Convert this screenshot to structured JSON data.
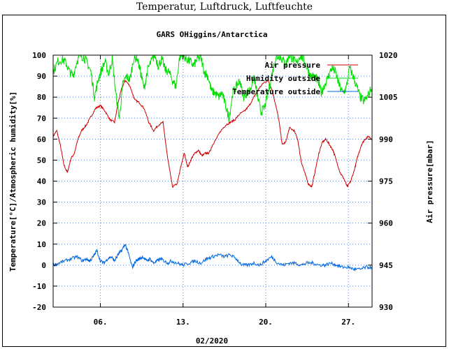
{
  "window_title": "Temperatur, Luftdruck, Luftfeuchte",
  "chart_data": {
    "type": "line",
    "title": "GARS OHiggins/Antarctica",
    "xlabel": "02/2020",
    "ylabel": "Temperature[°C]/Atmospheric humidity[%]",
    "y2label": "Air pressure[mbar]",
    "xlim": [
      2,
      29
    ],
    "ylim": [
      -20,
      100
    ],
    "y2lim": [
      930,
      1020
    ],
    "x_ticks": [
      6,
      13,
      20,
      27
    ],
    "x_tick_labels": [
      "06.",
      "13.",
      "20.",
      "27."
    ],
    "y_ticks": [
      -20,
      -10,
      0,
      10,
      20,
      30,
      40,
      50,
      60,
      70,
      80,
      90,
      100
    ],
    "y_tick_labels": [
      "-20",
      "-10",
      "0",
      "10",
      "20",
      "30",
      "40",
      "50",
      "60",
      "70",
      "80",
      "90",
      "100"
    ],
    "y2_ticks": [
      930,
      945,
      960,
      975,
      990,
      1005,
      1020
    ],
    "y2_tick_labels": [
      "930",
      "945",
      "960",
      "975",
      "990",
      "1005",
      "1020"
    ],
    "grid": true,
    "legend_position": "top-right",
    "series": [
      {
        "name": "Air pressure",
        "color": "#cc0000",
        "axis": "y2",
        "x": [
          2.0,
          2.3,
          2.6,
          2.9,
          3.2,
          3.5,
          3.8,
          4.1,
          4.4,
          4.8,
          5.2,
          5.6,
          6.0,
          6.4,
          6.8,
          7.2,
          7.5,
          7.8,
          8.1,
          8.5,
          8.9,
          9.3,
          9.7,
          10.1,
          10.5,
          10.9,
          11.3,
          11.7,
          12.1,
          12.5,
          12.8,
          13.1,
          13.4,
          13.7,
          14.0,
          14.3,
          14.6,
          14.9,
          15.2,
          15.5,
          15.8,
          16.2,
          16.6,
          17.0,
          17.4,
          17.8,
          18.2,
          18.6,
          19.0,
          19.4,
          19.8,
          20.2,
          20.5,
          20.8,
          21.1,
          21.4,
          21.7,
          22.0,
          22.4,
          22.7,
          23.0,
          23.3,
          23.6,
          23.9,
          24.2,
          24.5,
          24.8,
          25.1,
          25.4,
          25.7,
          26.0,
          26.3,
          26.6,
          26.9,
          27.2,
          27.5,
          27.8,
          28.1,
          28.4,
          28.7,
          29.0
        ],
        "y": [
          991,
          993,
          988,
          981,
          978,
          983,
          985,
          990,
          993,
          995,
          998,
          1001,
          1002,
          1000,
          997,
          996,
          1003,
          1008,
          1011,
          1009,
          1004,
          1003,
          1001,
          996,
          993,
          995,
          996,
          983,
          973,
          974,
          980,
          985,
          980,
          983,
          985,
          986,
          984,
          985,
          985,
          988,
          990,
          993,
          995,
          996,
          997,
          999,
          1000,
          1002,
          1005,
          1008,
          1010,
          1011,
          1008,
          1003,
          997,
          988,
          989,
          994,
          993,
          990,
          982,
          978,
          974,
          973,
          979,
          985,
          989,
          990,
          988,
          986,
          982,
          978,
          976,
          973,
          975,
          979,
          984,
          988,
          990,
          991,
          990
        ]
      },
      {
        "name": "Humidity outside",
        "color": "#00dd00",
        "axis": "y",
        "x": [
          2.0,
          2.4,
          2.8,
          3.1,
          3.4,
          3.7,
          4.0,
          4.3,
          4.6,
          4.9,
          5.2,
          5.5,
          5.8,
          6.1,
          6.4,
          6.7,
          7.0,
          7.3,
          7.6,
          7.9,
          8.2,
          8.5,
          8.8,
          9.1,
          9.4,
          9.7,
          10.0,
          10.3,
          10.6,
          10.9,
          11.2,
          11.5,
          11.8,
          12.1,
          12.4,
          12.7,
          13.0,
          13.3,
          13.6,
          13.9,
          14.2,
          14.5,
          14.8,
          15.1,
          15.4,
          15.7,
          16.0,
          16.3,
          16.6,
          16.9,
          17.2,
          17.5,
          17.8,
          18.1,
          18.4,
          18.7,
          19.0,
          19.3,
          19.6,
          19.9,
          20.2,
          20.5,
          20.8,
          21.1,
          21.4,
          21.7,
          22.0,
          22.3,
          22.6,
          22.9,
          23.2,
          23.5,
          23.8,
          24.1,
          24.4,
          24.7,
          25.0,
          25.3,
          25.6,
          25.9,
          26.2,
          26.5,
          26.8,
          27.1,
          27.4,
          27.7,
          28.0,
          28.3,
          28.6,
          29.0
        ],
        "y": [
          92,
          97,
          98,
          96,
          92,
          90,
          97,
          100,
          99,
          96,
          92,
          80,
          88,
          93,
          97,
          91,
          98,
          82,
          70,
          86,
          90,
          88,
          98,
          99,
          92,
          84,
          93,
          97,
          100,
          95,
          98,
          93,
          92,
          88,
          85,
          99,
          100,
          98,
          97,
          95,
          98,
          99,
          92,
          90,
          83,
          82,
          80,
          82,
          76,
          70,
          82,
          85,
          88,
          80,
          82,
          84,
          90,
          80,
          73,
          75,
          82,
          90,
          98,
          100,
          98,
          96,
          100,
          98,
          96,
          100,
          98,
          94,
          90,
          90,
          88,
          82,
          86,
          90,
          94,
          92,
          86,
          82,
          84,
          94,
          90,
          85,
          80,
          78,
          80,
          85
        ]
      },
      {
        "name": "Temperature outside",
        "color": "#0066dd",
        "axis": "y",
        "x": [
          2.0,
          2.5,
          3.0,
          3.5,
          4.0,
          4.5,
          4.8,
          5.1,
          5.4,
          5.7,
          6.0,
          6.3,
          6.6,
          6.9,
          7.2,
          7.5,
          7.8,
          8.1,
          8.4,
          8.7,
          9.0,
          9.3,
          9.6,
          9.9,
          10.2,
          10.5,
          10.8,
          11.1,
          11.4,
          11.7,
          12.0,
          12.5,
          13.0,
          13.5,
          14.0,
          14.5,
          15.0,
          15.5,
          16.0,
          16.5,
          17.0,
          17.5,
          18.0,
          18.5,
          19.0,
          19.5,
          20.0,
          20.5,
          21.0,
          21.5,
          22.0,
          22.5,
          23.0,
          23.5,
          24.0,
          24.5,
          25.0,
          25.5,
          26.0,
          26.5,
          27.0,
          27.5,
          28.0,
          28.5,
          29.0
        ],
        "y": [
          0,
          1,
          2,
          3,
          4,
          2,
          3,
          2,
          4,
          7,
          2,
          1,
          3,
          4,
          2,
          5,
          7,
          10,
          5,
          -1,
          2,
          3,
          4,
          2,
          3,
          1,
          2,
          3,
          2,
          1,
          2,
          1,
          0,
          1,
          2,
          1,
          3,
          4,
          5,
          4,
          5,
          3,
          0,
          0,
          1,
          0,
          2,
          4,
          1,
          0,
          1,
          1,
          0,
          1,
          1,
          0,
          0,
          1,
          0,
          -1,
          -1,
          -2,
          -2,
          -1,
          -1
        ]
      }
    ]
  }
}
